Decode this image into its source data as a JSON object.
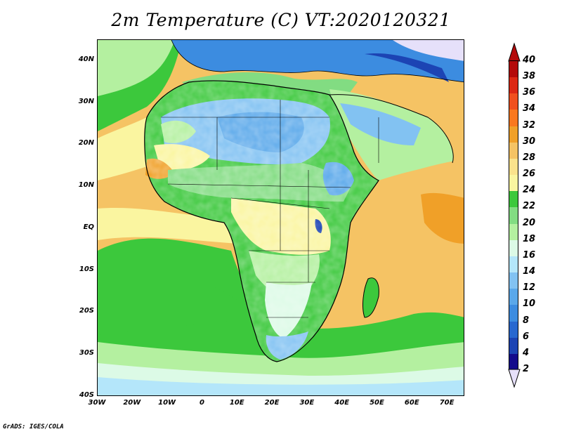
{
  "title": "2m Temperature (C) VT:2020120321",
  "footer": "GrADS: IGES/COLA",
  "chart_data": {
    "type": "heatmap",
    "variable": "2m Temperature",
    "units": "C",
    "valid_time": "2020120321",
    "lon_range": [
      -30,
      75
    ],
    "lat_range": [
      -40,
      45
    ],
    "x_ticks": [
      "30W",
      "20W",
      "10W",
      "0",
      "10E",
      "20E",
      "30E",
      "40E",
      "50E",
      "60E",
      "70E"
    ],
    "x_tick_values": [
      -30,
      -20,
      -10,
      0,
      10,
      20,
      30,
      40,
      50,
      60,
      70
    ],
    "y_ticks": [
      "40S",
      "30S",
      "20S",
      "10S",
      "EQ",
      "10N",
      "20N",
      "30N",
      "40N"
    ],
    "y_tick_values": [
      -40,
      -30,
      -20,
      -10,
      0,
      10,
      20,
      30,
      40
    ],
    "colorbar": {
      "labels": [
        "2",
        "4",
        "6",
        "8",
        "10",
        "12",
        "14",
        "16",
        "18",
        "20",
        "22",
        "24",
        "26",
        "28",
        "30",
        "32",
        "34",
        "36",
        "38",
        "40"
      ],
      "colors": [
        "#e6e0fa",
        "#140b8c",
        "#1c44b4",
        "#2868d0",
        "#3c8ce0",
        "#5aa8ea",
        "#82c2f2",
        "#b4e6fa",
        "#dcfae6",
        "#b4f0a0",
        "#82dc82",
        "#3cc83c",
        "#faf5a0",
        "#faE28c",
        "#f5c364",
        "#f0a028",
        "#fa781e",
        "#f0501e",
        "#dc2814",
        "#b40a0a",
        "#82000a"
      ]
    }
  }
}
